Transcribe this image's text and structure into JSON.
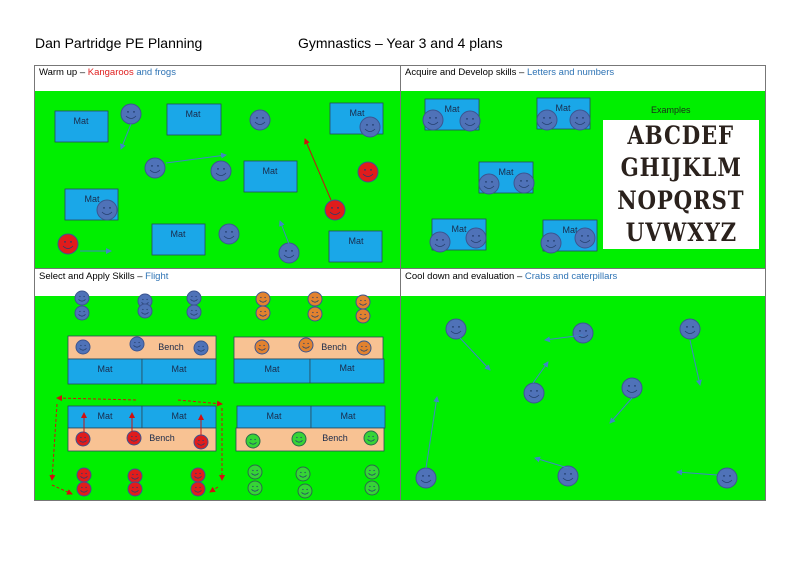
{
  "header": {
    "left": "Dan Partridge PE Planning",
    "right": "Gymnastics – Year 3 and 4 plans"
  },
  "sections": [
    {
      "title": "Warm up – ",
      "accent1": "Kangaroos",
      "accent2": " and frogs"
    },
    {
      "title": "Acquire and Develop skills – ",
      "accent1": "Letters and numbers"
    },
    {
      "title": "Select and Apply Skills – ",
      "accent1": "Flight"
    },
    {
      "title": "Cool down and evaluation – ",
      "accent1": "Crabs and caterpillars"
    }
  ],
  "labels": {
    "mat": "Mat",
    "bench": "Bench",
    "examples": "Examples"
  },
  "examples_image": {
    "rows": [
      "ABCDEF",
      "GHIJKLM",
      "NOPQRST",
      "UVWXYZ"
    ]
  },
  "colors": {
    "field": "#00ef00",
    "mat": "#1aa7e8",
    "bench": "#f8c293",
    "blue": "#4f72b8",
    "red": "#e01c1c",
    "orange": "#e2822f",
    "green": "#36d436",
    "kangaroo_accent": "#e02020",
    "frog_accent": "#2f74b5"
  }
}
